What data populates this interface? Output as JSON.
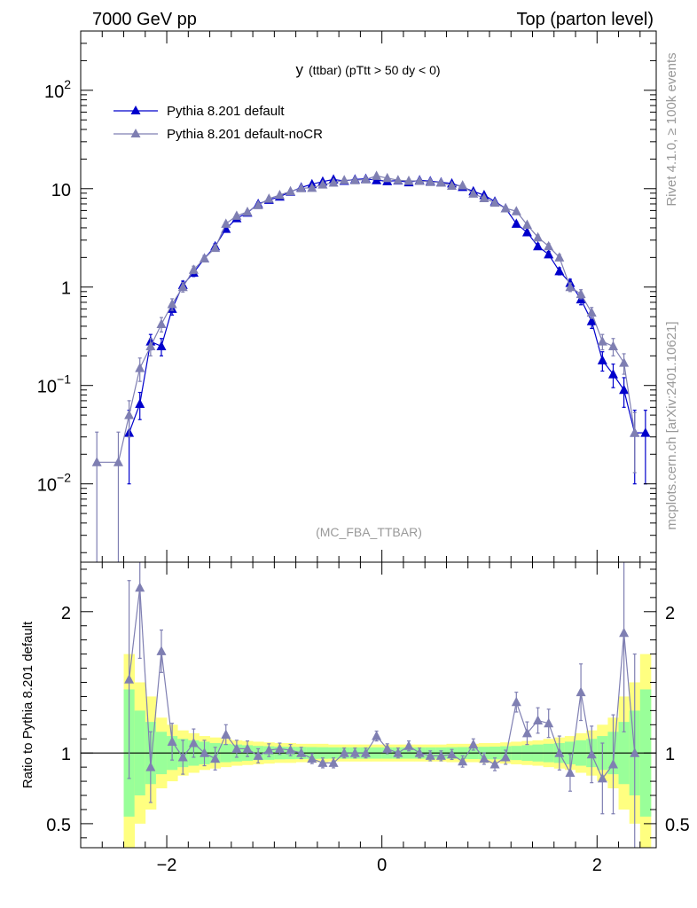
{
  "header": {
    "left": "7000 GeV pp",
    "right": "Top (parton level)"
  },
  "side_labels": {
    "rivet": "Rivet 4.1.0, ≥ 100k events",
    "mcplots": "mcplots.cern.ch [arXiv:2401.10621]"
  },
  "colors": {
    "default": "#0000cc",
    "nocr": "#7f7fb2",
    "band_yellow": "#ffff80",
    "band_green": "#99ff99"
  },
  "chart_data": [
    {
      "type": "line",
      "title": "y (ttbar) (pTtt > 50 dy < 0)",
      "title_main": "y",
      "title_rest": "(ttbar) (pTtt > 50 dy < 0)",
      "analysis": "(MC_FBA_TTBAR)",
      "yscale": "log",
      "xlim": [
        -2.8,
        2.55
      ],
      "ylim": [
        0.0016,
        400
      ],
      "xticks": [
        -2,
        0,
        2
      ],
      "yticks": [
        {
          "value": 0.01,
          "base": "10",
          "exp": "−2"
        },
        {
          "value": 0.1,
          "base": "10",
          "exp": "−1"
        },
        {
          "value": 1,
          "label": "1"
        },
        {
          "value": 10,
          "label": "10"
        },
        {
          "value": 100,
          "base": "10",
          "exp": "2"
        }
      ],
      "legend_position": "top-left",
      "series": [
        {
          "name": "Pythia 8.201 default",
          "color": "#0000cc",
          "x": [
            -2.35,
            -2.25,
            -2.15,
            -2.05,
            -1.95,
            -1.85,
            -1.75,
            -1.65,
            -1.55,
            -1.45,
            -1.35,
            -1.25,
            -1.15,
            -1.05,
            -0.95,
            -0.85,
            -0.75,
            -0.65,
            -0.55,
            -0.45,
            -0.35,
            -0.25,
            -0.15,
            -0.05,
            0.05,
            0.15,
            0.25,
            0.35,
            0.45,
            0.55,
            0.65,
            0.75,
            0.85,
            0.95,
            1.05,
            1.15,
            1.25,
            1.35,
            1.45,
            1.55,
            1.65,
            1.75,
            1.85,
            1.95,
            2.05,
            2.15,
            2.25,
            2.35,
            2.45
          ],
          "y": [
            0.033,
            0.065,
            0.28,
            0.25,
            0.6,
            1.05,
            1.4,
            1.95,
            2.6,
            3.9,
            5.0,
            5.7,
            7.0,
            7.7,
            8.3,
            9.3,
            10.3,
            11.1,
            11.8,
            12.4,
            12.0,
            12.4,
            12.6,
            12.2,
            11.9,
            12.1,
            11.6,
            12.2,
            11.9,
            11.6,
            11.3,
            10.4,
            9.4,
            8.6,
            7.4,
            6.3,
            4.4,
            3.6,
            2.6,
            2.15,
            1.45,
            1.1,
            0.75,
            0.45,
            0.18,
            0.13,
            0.09,
            0.033,
            0.033
          ],
          "yerr": [
            0.023,
            0.02,
            0.05,
            0.05,
            0.08,
            0.1,
            0.12,
            0.14,
            0.16,
            0.2,
            0.22,
            0.24,
            0.26,
            0.28,
            0.29,
            0.3,
            0.32,
            0.33,
            0.34,
            0.35,
            0.35,
            0.35,
            0.35,
            0.35,
            0.35,
            0.35,
            0.34,
            0.35,
            0.34,
            0.34,
            0.33,
            0.32,
            0.3,
            0.29,
            0.27,
            0.25,
            0.21,
            0.19,
            0.16,
            0.15,
            0.12,
            0.1,
            0.09,
            0.07,
            0.04,
            0.035,
            0.03,
            0.023,
            0.023
          ]
        },
        {
          "name": "Pythia 8.201 default-noCR",
          "color": "#7f7fb2",
          "x": [
            -2.65,
            -2.45,
            -2.35,
            -2.25,
            -2.15,
            -2.05,
            -1.95,
            -1.85,
            -1.75,
            -1.65,
            -1.55,
            -1.45,
            -1.35,
            -1.25,
            -1.15,
            -1.05,
            -0.95,
            -0.85,
            -0.75,
            -0.65,
            -0.55,
            -0.45,
            -0.35,
            -0.25,
            -0.15,
            -0.05,
            0.05,
            0.15,
            0.25,
            0.35,
            0.45,
            0.55,
            0.65,
            0.75,
            0.85,
            0.95,
            1.05,
            1.15,
            1.25,
            1.35,
            1.45,
            1.55,
            1.65,
            1.75,
            1.85,
            1.95,
            2.05,
            2.15,
            2.25,
            2.35
          ],
          "y": [
            0.0166,
            0.0166,
            0.05,
            0.15,
            0.25,
            0.42,
            0.67,
            1.0,
            1.5,
            1.95,
            2.5,
            4.4,
            5.3,
            5.8,
            6.8,
            7.9,
            8.6,
            9.4,
            10.1,
            10.2,
            11.0,
            11.5,
            12.2,
            12.2,
            12.4,
            13.5,
            12.8,
            12.2,
            12.0,
            12.0,
            11.7,
            11.5,
            10.7,
            10.8,
            8.9,
            8.0,
            7.2,
            6.3,
            5.9,
            4.3,
            3.2,
            2.6,
            2.0,
            1.0,
            0.85,
            0.55,
            0.28,
            0.25,
            0.17,
            0.033
          ],
          "yerr": [
            0.017,
            0.017,
            0.02,
            0.04,
            0.05,
            0.07,
            0.09,
            0.11,
            0.13,
            0.14,
            0.16,
            0.2,
            0.22,
            0.23,
            0.25,
            0.27,
            0.28,
            0.3,
            0.31,
            0.31,
            0.32,
            0.33,
            0.34,
            0.34,
            0.34,
            0.36,
            0.35,
            0.34,
            0.34,
            0.34,
            0.33,
            0.33,
            0.32,
            0.32,
            0.29,
            0.28,
            0.26,
            0.25,
            0.24,
            0.2,
            0.18,
            0.16,
            0.14,
            0.1,
            0.09,
            0.07,
            0.05,
            0.05,
            0.04,
            0.02
          ]
        }
      ]
    },
    {
      "type": "line",
      "title": "ratio",
      "ylabel": "Ratio to Pythia 8.201 default",
      "xlim": [
        -2.8,
        2.55
      ],
      "ylim": [
        0.33,
        2.35
      ],
      "xticks": [
        -2,
        0,
        2
      ],
      "yticks": [
        0.5,
        1,
        2
      ],
      "reference": 1,
      "bands": {
        "x_edges": [
          -2.4,
          -2.3,
          -2.2,
          -2.1,
          -2.0,
          -1.9,
          -1.8,
          -1.7,
          -1.6,
          -1.5,
          -1.4,
          -1.3,
          -1.2,
          -1.1,
          -1.0,
          -0.9,
          -0.8,
          -0.7,
          -0.6,
          -0.5,
          -0.4,
          -0.3,
          -0.2,
          -0.1,
          0.0,
          0.1,
          0.2,
          0.3,
          0.4,
          0.5,
          0.6,
          0.7,
          0.8,
          0.9,
          1.0,
          1.1,
          1.2,
          1.3,
          1.4,
          1.5,
          1.6,
          1.7,
          1.8,
          1.9,
          2.0,
          2.1,
          2.2,
          2.3,
          2.4,
          2.5
        ],
        "yellow_halfwidth": [
          0.7,
          0.5,
          0.4,
          0.25,
          0.2,
          0.16,
          0.14,
          0.12,
          0.11,
          0.1,
          0.09,
          0.085,
          0.08,
          0.075,
          0.07,
          0.07,
          0.065,
          0.065,
          0.065,
          0.06,
          0.06,
          0.06,
          0.06,
          0.06,
          0.06,
          0.06,
          0.06,
          0.06,
          0.06,
          0.06,
          0.065,
          0.065,
          0.065,
          0.07,
          0.07,
          0.075,
          0.08,
          0.085,
          0.09,
          0.1,
          0.11,
          0.12,
          0.14,
          0.16,
          0.2,
          0.25,
          0.4,
          0.5,
          0.7
        ],
        "green_halfwidth": [
          0.45,
          0.3,
          0.22,
          0.15,
          0.12,
          0.1,
          0.09,
          0.08,
          0.07,
          0.065,
          0.06,
          0.055,
          0.05,
          0.048,
          0.045,
          0.044,
          0.043,
          0.042,
          0.041,
          0.04,
          0.04,
          0.04,
          0.04,
          0.04,
          0.04,
          0.04,
          0.04,
          0.04,
          0.04,
          0.04,
          0.041,
          0.042,
          0.043,
          0.044,
          0.045,
          0.048,
          0.05,
          0.055,
          0.06,
          0.065,
          0.07,
          0.08,
          0.09,
          0.1,
          0.12,
          0.15,
          0.22,
          0.3,
          0.45
        ]
      },
      "series": [
        {
          "name": "Pythia 8.201 default-noCR / Pythia 8.201 default",
          "color": "#7f7fb2",
          "x": [
            -2.35,
            -2.25,
            -2.15,
            -2.05,
            -1.95,
            -1.85,
            -1.75,
            -1.65,
            -1.55,
            -1.45,
            -1.35,
            -1.25,
            -1.15,
            -1.05,
            -0.95,
            -0.85,
            -0.75,
            -0.65,
            -0.55,
            -0.45,
            -0.35,
            -0.25,
            -0.15,
            -0.05,
            0.05,
            0.15,
            0.25,
            0.35,
            0.45,
            0.55,
            0.65,
            0.75,
            0.85,
            0.95,
            1.05,
            1.15,
            1.25,
            1.35,
            1.45,
            1.55,
            1.65,
            1.75,
            1.85,
            1.95,
            2.05,
            2.15,
            2.25,
            2.35
          ],
          "y": [
            1.52,
            2.17,
            0.9,
            1.72,
            1.08,
            0.97,
            1.07,
            1.0,
            0.96,
            1.13,
            1.03,
            1.03,
            0.98,
            1.02,
            1.03,
            1.02,
            1.0,
            0.96,
            0.93,
            0.93,
            1.0,
            1.0,
            1.0,
            1.12,
            1.03,
            1.0,
            1.05,
            1.0,
            0.98,
            0.98,
            0.99,
            0.94,
            1.06,
            0.96,
            0.92,
            0.97,
            1.36,
            1.14,
            1.23,
            1.21,
            1.0,
            0.86,
            1.43,
            0.99,
            0.82,
            0.92,
            1.85,
            1.0
          ],
          "yerr": [
            0.7,
            0.5,
            0.25,
            0.15,
            0.13,
            0.12,
            0.1,
            0.09,
            0.08,
            0.07,
            0.06,
            0.055,
            0.05,
            0.045,
            0.04,
            0.04,
            0.04,
            0.035,
            0.035,
            0.035,
            0.035,
            0.035,
            0.035,
            0.035,
            0.035,
            0.035,
            0.035,
            0.035,
            0.035,
            0.035,
            0.035,
            0.04,
            0.04,
            0.04,
            0.045,
            0.05,
            0.07,
            0.08,
            0.09,
            0.1,
            0.12,
            0.13,
            0.2,
            0.2,
            0.25,
            0.35,
            0.7,
            0.7
          ]
        }
      ]
    }
  ]
}
